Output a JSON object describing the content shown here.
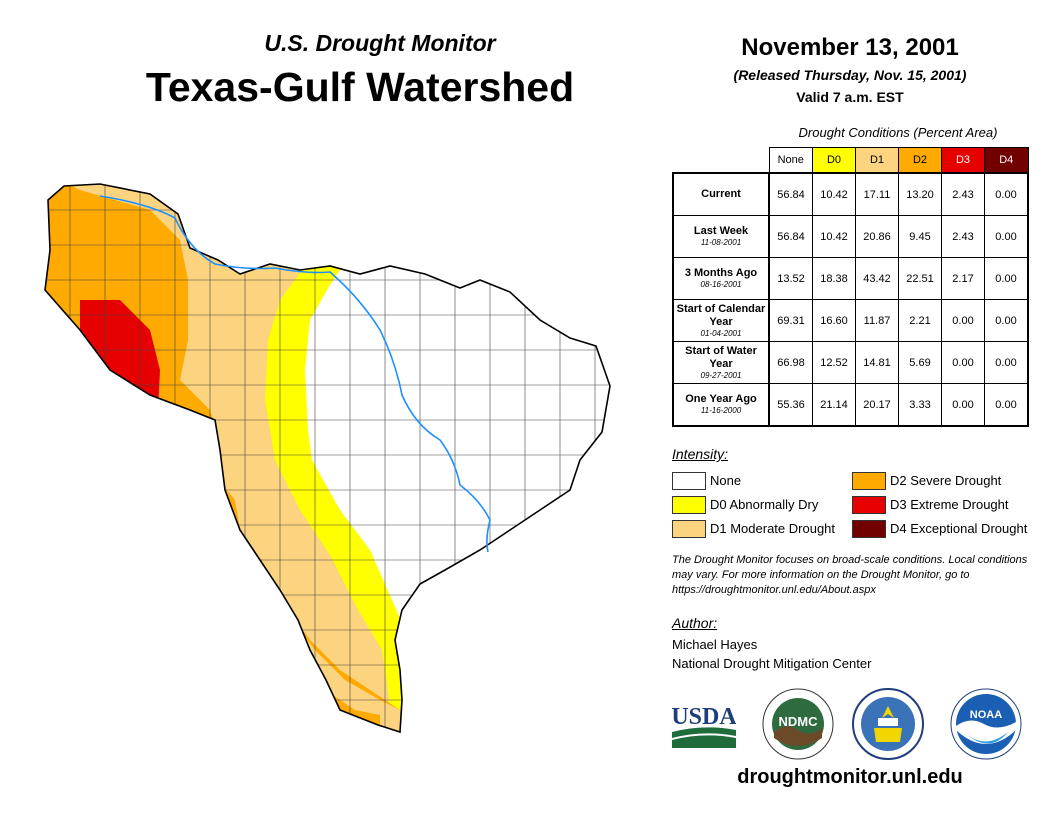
{
  "header": {
    "subtitle": "U.S. Drought Monitor",
    "title": "Texas-Gulf Watershed",
    "date": "November 13, 2001",
    "released": "(Released Thursday, Nov. 15, 2001)",
    "valid": "Valid 7 a.m. EST"
  },
  "table": {
    "caption": "Drought Conditions (Percent Area)",
    "columns": [
      "None",
      "D0",
      "D1",
      "D2",
      "D3",
      "D4"
    ],
    "column_colors": [
      "#ffffff",
      "#ffff00",
      "#fcd37f",
      "#ffaa00",
      "#e60000",
      "#730000"
    ],
    "rows": [
      {
        "label": "Current",
        "sub": "",
        "values": [
          "56.84",
          "10.42",
          "17.11",
          "13.20",
          "2.43",
          "0.00"
        ]
      },
      {
        "label": "Last Week",
        "sub": "11-08-2001",
        "values": [
          "56.84",
          "10.42",
          "20.86",
          "9.45",
          "2.43",
          "0.00"
        ]
      },
      {
        "label": "3 Months Ago",
        "sub": "08-16-2001",
        "values": [
          "13.52",
          "18.38",
          "43.42",
          "22.51",
          "2.17",
          "0.00"
        ]
      },
      {
        "label": "Start of Calendar Year",
        "sub": "01-04-2001",
        "values": [
          "69.31",
          "16.60",
          "11.87",
          "2.21",
          "0.00",
          "0.00"
        ]
      },
      {
        "label": "Start of Water Year",
        "sub": "09-27-2001",
        "values": [
          "66.98",
          "12.52",
          "14.81",
          "5.69",
          "0.00",
          "0.00"
        ]
      },
      {
        "label": "One Year Ago",
        "sub": "11-16-2000",
        "values": [
          "55.36",
          "21.14",
          "20.17",
          "3.33",
          "0.00",
          "0.00"
        ]
      }
    ]
  },
  "legend": {
    "title": "Intensity:",
    "items": [
      {
        "label": "None",
        "color": "#ffffff"
      },
      {
        "label": "D0 Abnormally Dry",
        "color": "#ffff00"
      },
      {
        "label": "D1 Moderate Drought",
        "color": "#fcd37f"
      },
      {
        "label": "D2 Severe Drought",
        "color": "#ffaa00"
      },
      {
        "label": "D3 Extreme Drought",
        "color": "#e60000"
      },
      {
        "label": "D4 Exceptional Drought",
        "color": "#730000"
      }
    ]
  },
  "note": "The Drought Monitor focuses on broad-scale conditions. Local conditions may vary. For more information on the Drought Monitor, go to https://droughtmonitor.unl.edu/About.aspx",
  "author": {
    "title": "Author:",
    "name": "Michael Hayes",
    "org": "National Drought Mitigation Center"
  },
  "logos": {
    "usda": "USDA",
    "ndmc": "NDMC",
    "noaa": "NOAA"
  },
  "url": "droughtmonitor.unl.edu",
  "map": {
    "river_color": "#1e90ff",
    "name": "texas-gulf-drought-map"
  }
}
